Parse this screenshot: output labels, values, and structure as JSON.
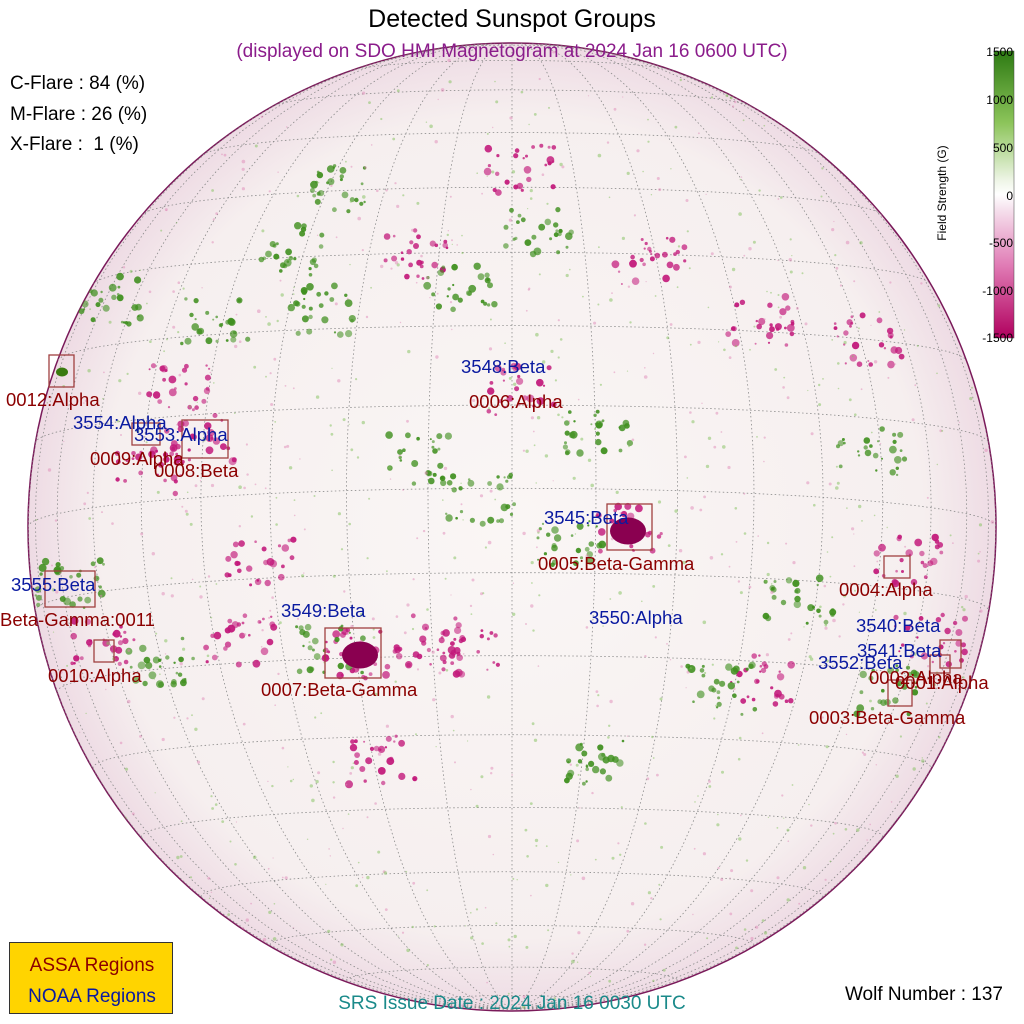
{
  "header": {
    "title": "Detected Sunspot Groups",
    "subtitle": "(displayed on SDO HMI Magnetogram at 2024 Jan 16 0600 UTC)"
  },
  "flare_probabilities": {
    "c_flare": "C-Flare : 84 (%)",
    "m_flare": "M-Flare : 26 (%)",
    "x_flare": "X-Flare :  1 (%)"
  },
  "colorbar": {
    "title": "Field Strength (G)",
    "ticks": [
      "1500",
      "1000",
      "500",
      "0",
      "-500",
      "-1000",
      "-1500"
    ],
    "range": [
      -1500,
      1500
    ],
    "color_positive": "#3a8a1a",
    "color_negative": "#c0006a",
    "color_zero": "#ffffff"
  },
  "noaa_regions": [
    {
      "label": "3548:Beta"
    },
    {
      "label": "3554:Alpha"
    },
    {
      "label": "3553:Alpha"
    },
    {
      "label": "3545:Beta"
    },
    {
      "label": "3555:Beta"
    },
    {
      "label": "3549:Beta"
    },
    {
      "label": "3550:Alpha"
    },
    {
      "label": "3540:Beta"
    },
    {
      "label": "3541:Beta"
    },
    {
      "label": "3552:Beta"
    }
  ],
  "assa_regions": [
    {
      "label": "0012:Alpha"
    },
    {
      "label": "0006:Alpha"
    },
    {
      "label": "0009:Alpha"
    },
    {
      "label": "0008:Beta"
    },
    {
      "label": "0005:Beta-Gamma"
    },
    {
      "label": "0004:Alpha"
    },
    {
      "label": "0011:Beta-Gamma"
    },
    {
      "label": "0010:Alpha"
    },
    {
      "label": "0007:Beta-Gamma"
    },
    {
      "label": "0002:Alpha"
    },
    {
      "label": "0001:Alpha"
    },
    {
      "label": "0003:Beta-Gamma"
    }
  ],
  "legend": {
    "assa": "ASSA Regions",
    "noaa": "NOAA Regions",
    "assa_color": "#8b0000",
    "noaa_color": "#0a1aa0",
    "background": "#ffd400"
  },
  "footer": {
    "srs_issue": "SRS Issue Date : 2024 Jan 16 0030 UTC",
    "wolf_number": "Wolf Number : 137"
  }
}
